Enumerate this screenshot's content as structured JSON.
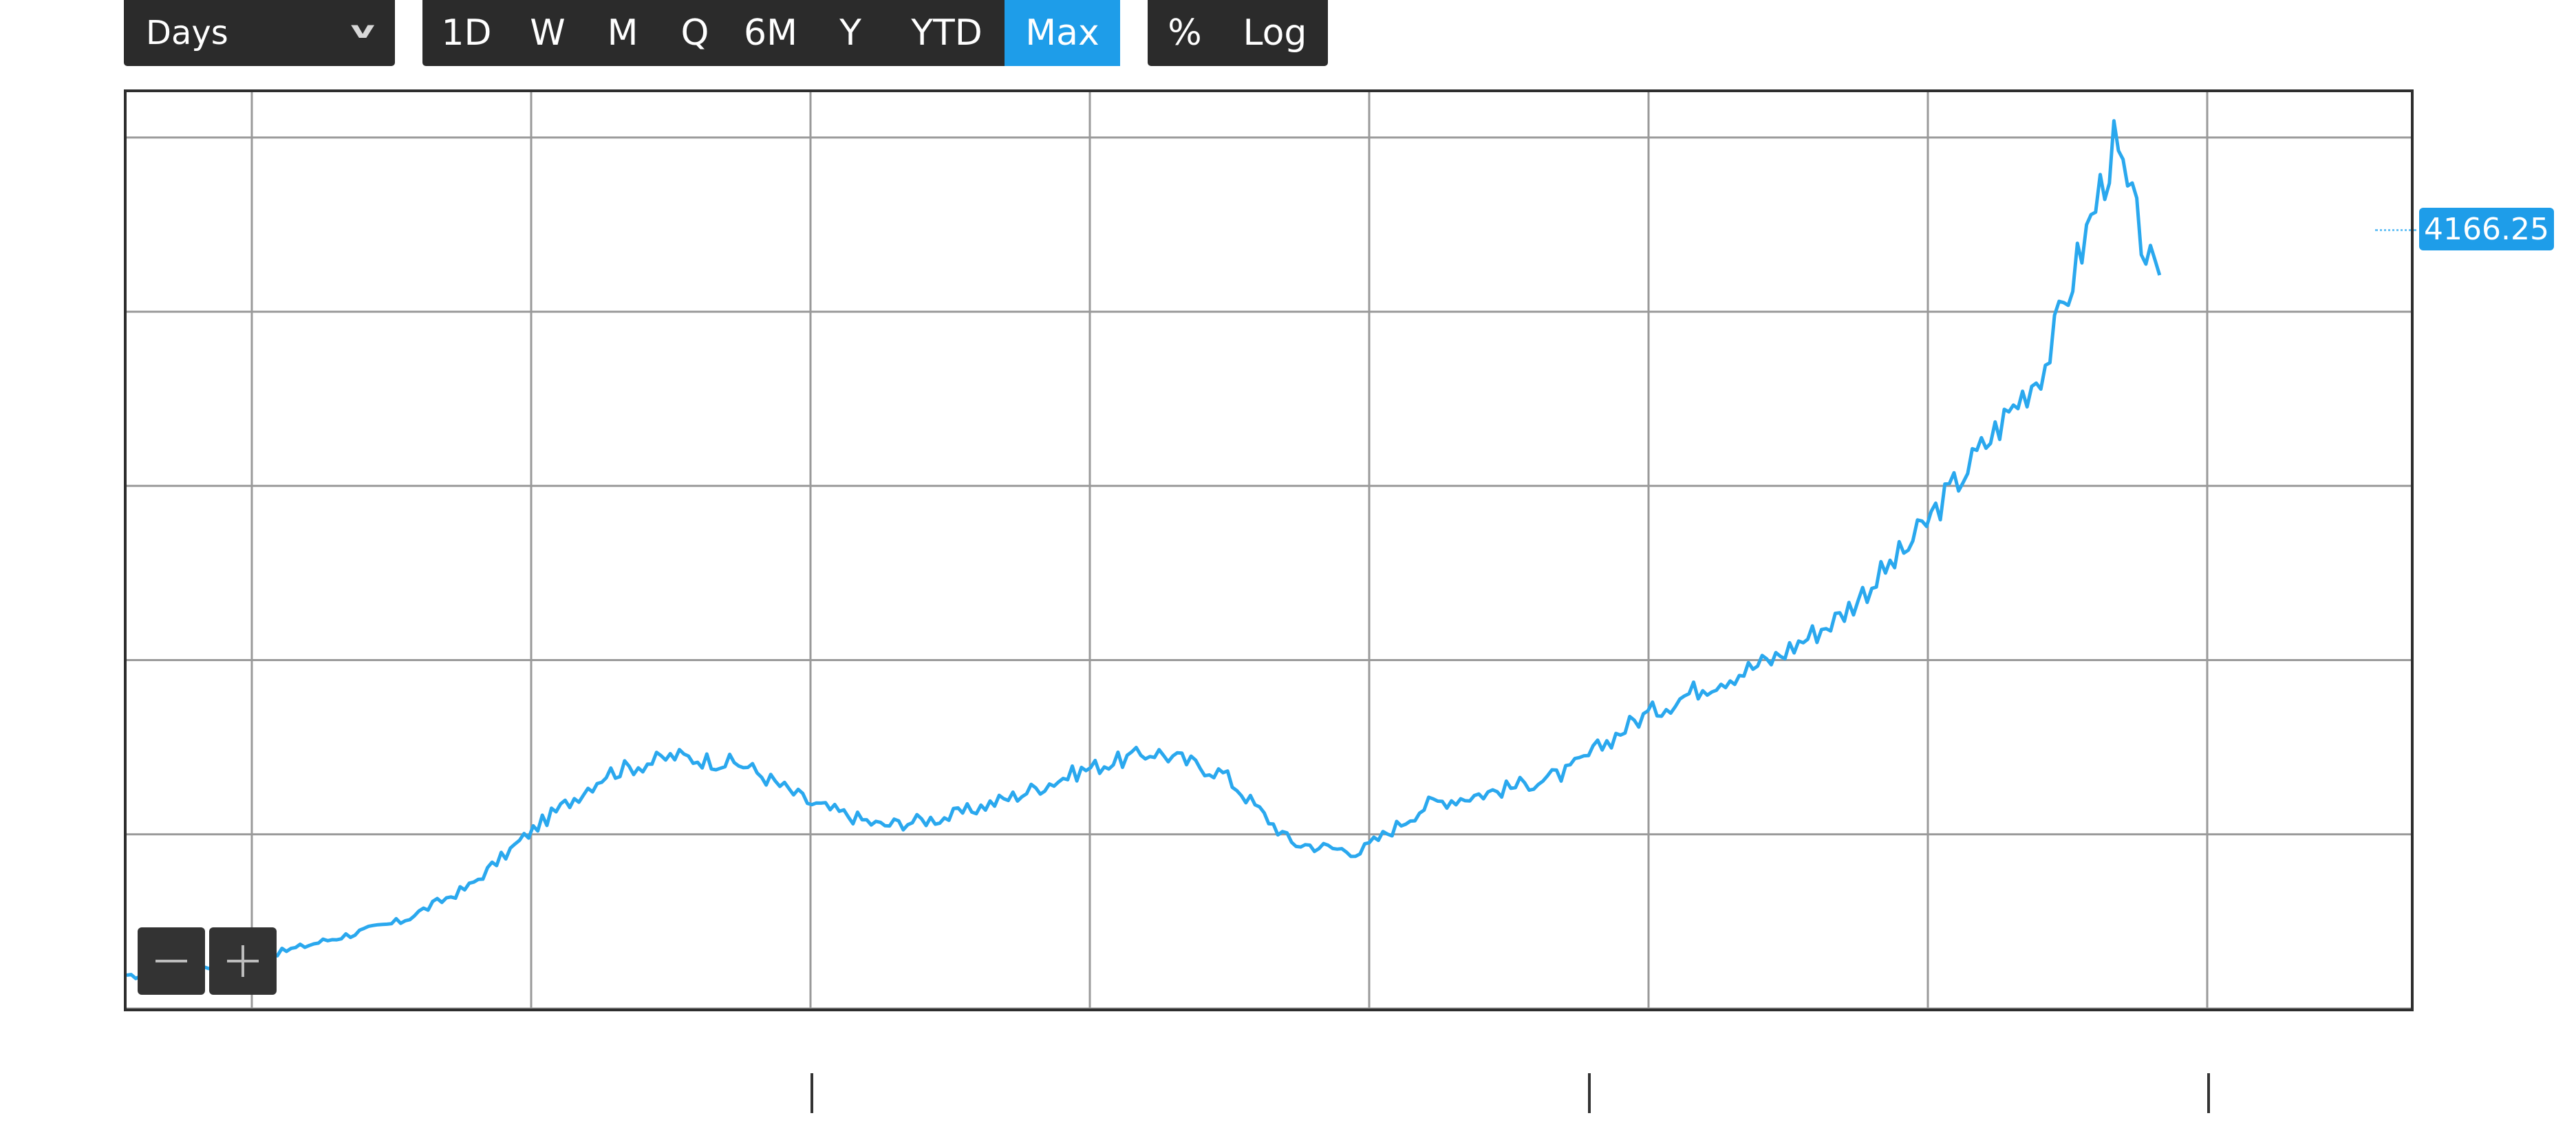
{
  "toolbar": {
    "interval": {
      "label": "Days",
      "icon": "chevron-down-icon"
    },
    "ranges": [
      "1D",
      "W",
      "M",
      "Q",
      "6M",
      "Y",
      "YTD",
      "Max"
    ],
    "active_range": "Max",
    "scales": [
      "%",
      "Log"
    ]
  },
  "zoom": {
    "out_label": "−",
    "in_label": "+"
  },
  "colors": {
    "accent": "#1e9de9",
    "line": "#2aa8ee",
    "toolbar": "#2b2b2b",
    "grid": "#9a9a9a"
  },
  "chart_data": {
    "type": "line",
    "last_value": "4166.25",
    "ylim": [
      -4000,
      6520
    ],
    "y_gridlines": [
      -4000,
      -2000,
      0,
      2000,
      4000,
      6000
    ],
    "x": [
      0,
      0.3,
      0.6,
      0.9,
      1.2,
      1.5,
      1.8,
      2.1,
      2.4,
      2.7,
      3.0,
      3.3,
      3.6,
      3.9,
      4.2,
      4.5,
      4.8,
      5.1,
      5.4,
      5.7,
      6.0,
      6.3,
      6.6,
      6.9,
      7.2,
      7.5,
      7.8,
      8.1,
      8.4,
      8.7,
      8.9
    ],
    "values": [
      -3640,
      -3560,
      -3400,
      -3200,
      -3000,
      -2600,
      -1900,
      -1300,
      -1100,
      -1200,
      -1650,
      -1900,
      -1800,
      -1550,
      -1250,
      -1050,
      -1300,
      -2100,
      -2200,
      -1650,
      -1500,
      -1300,
      -700,
      -300,
      0,
      500,
      1300,
      2350,
      3400,
      5900,
      4170
    ],
    "grid": true,
    "legend": "none"
  }
}
